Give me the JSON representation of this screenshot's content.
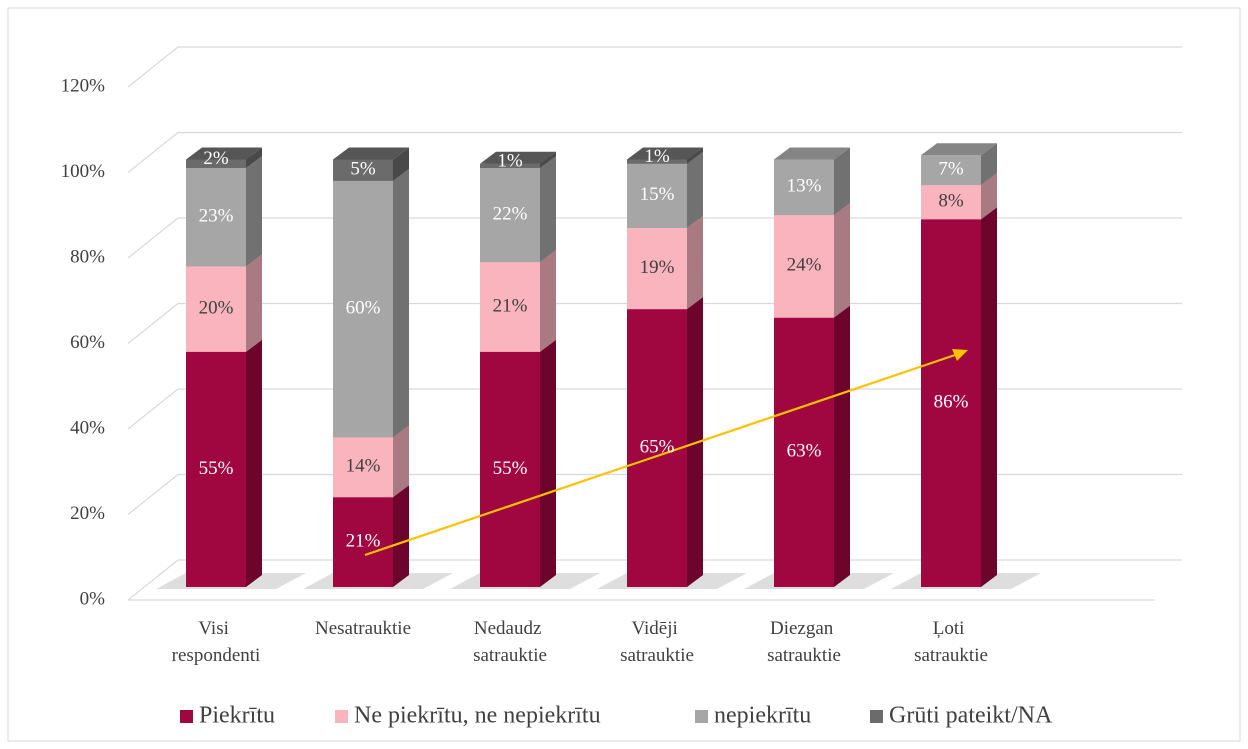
{
  "chart_data": {
    "type": "bar3d-stacked",
    "categories": [
      "Visi respondenti",
      "Nesatrauktie",
      "Nedaudz satrauktie",
      "Vidēji satrauktie",
      "Diezgan satrauktie",
      "Ļoti satrauktie"
    ],
    "series": [
      {
        "name": "Piekrītu",
        "color": "#a0063f",
        "values": [
          55,
          21,
          55,
          65,
          63,
          86
        ],
        "value_labels": [
          "55%",
          "21%",
          "55%",
          "65%",
          "63%",
          "86%"
        ]
      },
      {
        "name": "Ne piekrītu, ne nepiekrītu",
        "color": "#f9b4be",
        "values": [
          20,
          14,
          21,
          19,
          24,
          8
        ],
        "value_labels": [
          "20%",
          "14%",
          "21%",
          "19%",
          "24%",
          "8%"
        ]
      },
      {
        "name": "nepiekrītu",
        "color": "#a6a6a6",
        "values": [
          23,
          60,
          22,
          15,
          13,
          7
        ],
        "value_labels": [
          "23%",
          "60%",
          "22%",
          "15%",
          "13%",
          "7%"
        ]
      },
      {
        "name": "Grūti pateikt/NA",
        "color": "#6b6b6b",
        "values": [
          2,
          5,
          1,
          1,
          null,
          null
        ],
        "value_labels": [
          "2%",
          "5%",
          "1%",
          "1%",
          null,
          null
        ]
      }
    ],
    "ylim": [
      0,
      120
    ],
    "yticks": [
      {
        "value": 0,
        "label": "0%"
      },
      {
        "value": 20,
        "label": "20%"
      },
      {
        "value": 40,
        "label": "40%"
      },
      {
        "value": 60,
        "label": "60%"
      },
      {
        "value": 80,
        "label": "80%"
      },
      {
        "value": 100,
        "label": "100%"
      },
      {
        "value": 120,
        "label": "120%"
      }
    ],
    "grid": true,
    "legend": "bottom"
  }
}
